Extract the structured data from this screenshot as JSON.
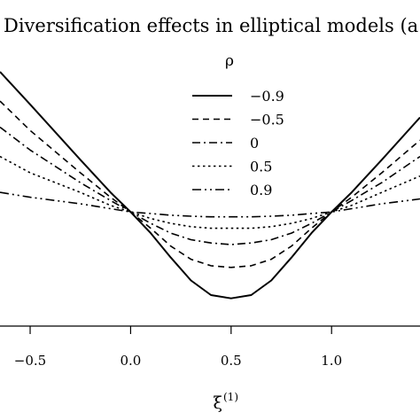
{
  "chart_data": {
    "type": "line",
    "title": "Diversification effects in elliptical models (a",
    "xlabel": "ξ",
    "xlabel_superscript": "(1)",
    "ylabel": "",
    "xlim": [
      -0.65,
      1.44
    ],
    "ylim": [
      0.0,
      1.0
    ],
    "x_ticks": [
      -0.5,
      0.0,
      0.5,
      1.0
    ],
    "x_tick_labels": [
      "−0.5",
      "0.0",
      "0.5",
      "1.0"
    ],
    "grid": false,
    "legend": {
      "title": "ρ",
      "placement": "top-right",
      "entries": [
        "−0.9",
        "−0.5",
        "0",
        "0.5",
        "0.9"
      ]
    },
    "series": [
      {
        "name": "−0.9",
        "linestyle": "solid",
        "x": [
          -0.65,
          -0.5,
          -0.25,
          -0.1,
          0.0,
          0.1,
          0.2,
          0.3,
          0.4,
          0.5,
          0.6,
          0.7,
          0.8,
          0.9,
          1.0,
          1.1,
          1.25,
          1.44
        ],
        "y": [
          0.78,
          0.68,
          0.51,
          0.41,
          0.35,
          0.285,
          0.21,
          0.14,
          0.095,
          0.085,
          0.095,
          0.14,
          0.21,
          0.285,
          0.35,
          0.41,
          0.51,
          0.64
        ]
      },
      {
        "name": "−0.5",
        "linestyle": "dashed",
        "x": [
          -0.65,
          -0.5,
          -0.25,
          -0.1,
          0.0,
          0.1,
          0.2,
          0.3,
          0.4,
          0.5,
          0.6,
          0.7,
          0.8,
          0.9,
          1.0,
          1.1,
          1.25,
          1.44
        ],
        "y": [
          0.69,
          0.6,
          0.47,
          0.395,
          0.35,
          0.3,
          0.245,
          0.205,
          0.185,
          0.18,
          0.185,
          0.205,
          0.245,
          0.3,
          0.35,
          0.395,
          0.47,
          0.57
        ]
      },
      {
        "name": "0",
        "linestyle": "dashdot",
        "x": [
          -0.65,
          -0.5,
          -0.25,
          -0.1,
          0.0,
          0.1,
          0.2,
          0.3,
          0.4,
          0.5,
          0.6,
          0.7,
          0.8,
          0.9,
          1.0,
          1.1,
          1.25,
          1.44
        ],
        "y": [
          0.61,
          0.54,
          0.44,
          0.385,
          0.35,
          0.315,
          0.285,
          0.265,
          0.255,
          0.25,
          0.255,
          0.265,
          0.285,
          0.315,
          0.35,
          0.385,
          0.44,
          0.52
        ]
      },
      {
        "name": "0.5",
        "linestyle": "dotted",
        "x": [
          -0.65,
          -0.5,
          -0.25,
          -0.1,
          0.0,
          0.1,
          0.2,
          0.3,
          0.4,
          0.5,
          0.6,
          0.7,
          0.8,
          0.9,
          1.0,
          1.1,
          1.25,
          1.44
        ],
        "y": [
          0.52,
          0.47,
          0.41,
          0.37,
          0.35,
          0.33,
          0.315,
          0.305,
          0.3,
          0.3,
          0.3,
          0.305,
          0.315,
          0.33,
          0.35,
          0.37,
          0.41,
          0.46
        ]
      },
      {
        "name": "0.9",
        "linestyle": "dotdashdot",
        "x": [
          -0.65,
          -0.5,
          -0.25,
          -0.1,
          0.0,
          0.1,
          0.2,
          0.3,
          0.4,
          0.5,
          0.6,
          0.7,
          0.8,
          0.9,
          1.0,
          1.1,
          1.25,
          1.44
        ],
        "y": [
          0.41,
          0.395,
          0.375,
          0.36,
          0.35,
          0.345,
          0.34,
          0.337,
          0.335,
          0.335,
          0.335,
          0.337,
          0.34,
          0.345,
          0.35,
          0.36,
          0.375,
          0.39
        ]
      }
    ]
  }
}
